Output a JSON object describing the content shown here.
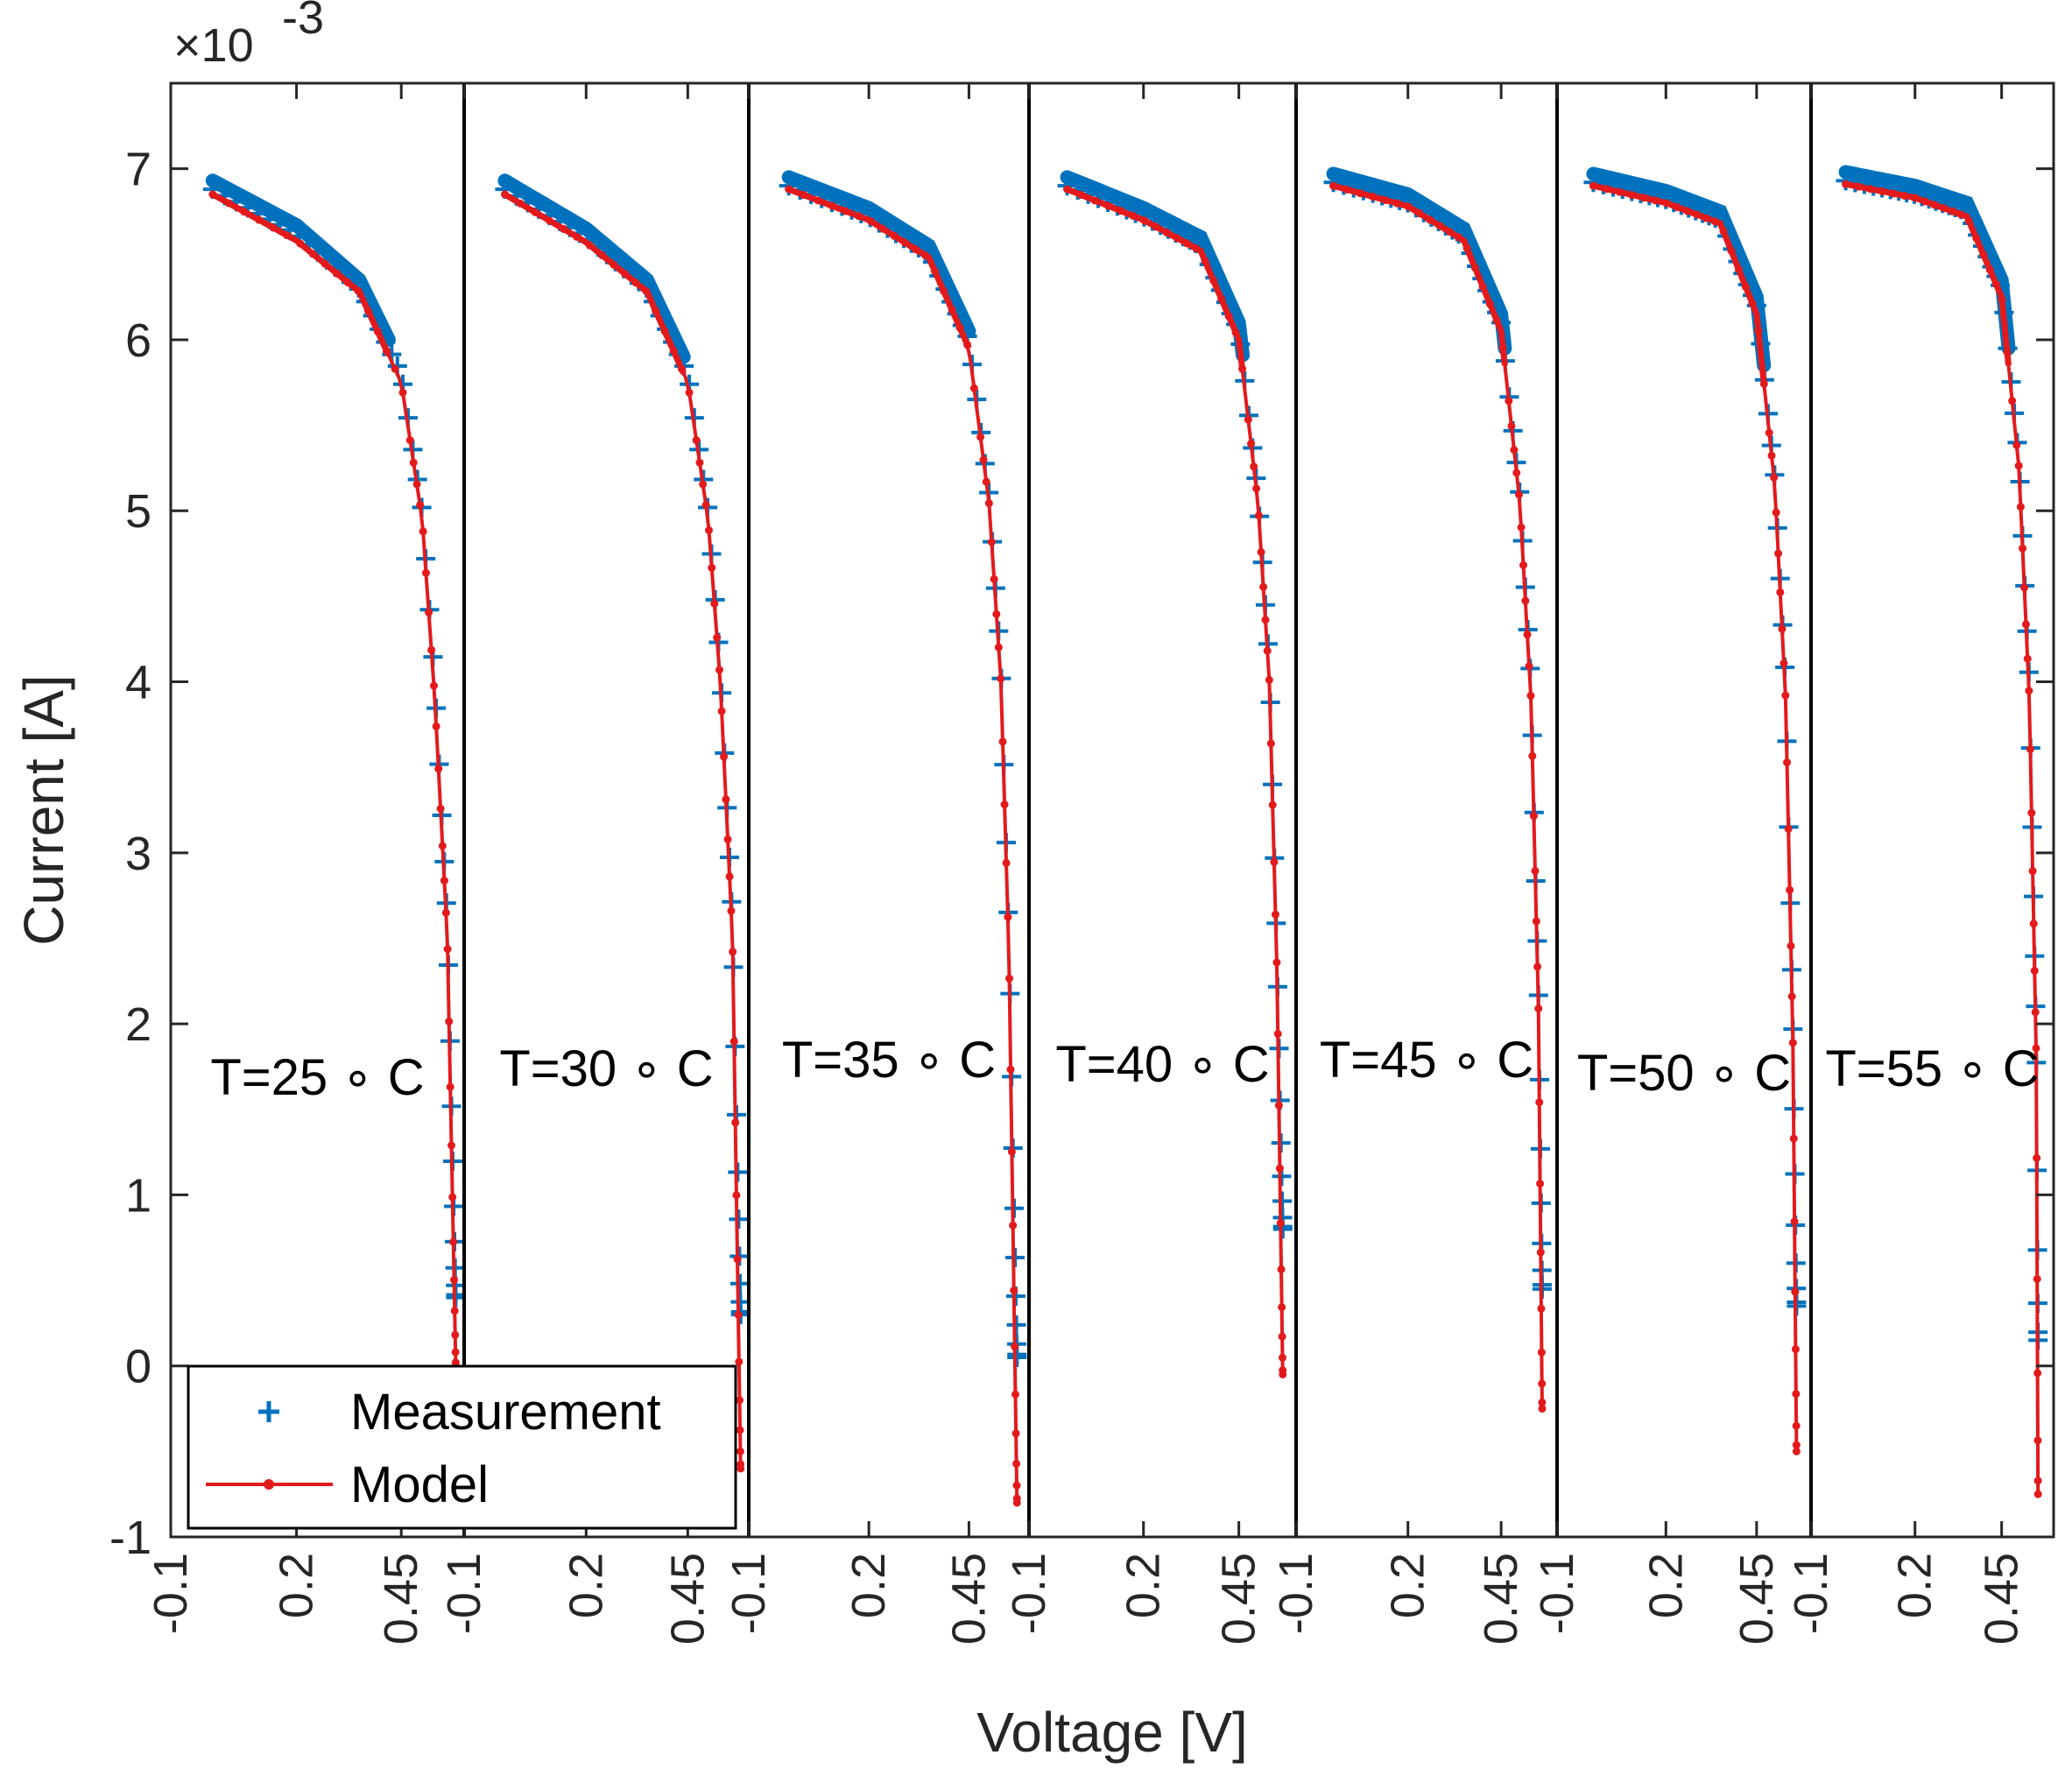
{
  "colors": {
    "measurement": "#0072BD",
    "model": "#E31A1C",
    "axis": "#262626",
    "divider": "#000000",
    "background": "#ffffff"
  },
  "chart_data": {
    "type": "line",
    "title": "",
    "xlabel": "Voltage [V]",
    "ylabel": "Current [A]",
    "y_exponent_label": "×10",
    "y_exponent_power": "-3",
    "ylim": [
      -1,
      7.5
    ],
    "y_ticks": [
      -1,
      0,
      1,
      2,
      3,
      4,
      5,
      6,
      7
    ],
    "y_tick_labels": [
      "-1",
      "0",
      "1",
      "2",
      "3",
      "4",
      "5",
      "6",
      "7"
    ],
    "panel_xlim": [
      -0.1,
      0.6
    ],
    "x_tick_values": [
      -0.1,
      0.2,
      0.45
    ],
    "x_tick_labels": [
      "-0.1",
      "0.2",
      "0.45"
    ],
    "grid": false,
    "legend": {
      "position": "bottom-left",
      "entries": [
        {
          "label": "Measurement",
          "marker": "plus"
        },
        {
          "label": "Model",
          "marker": "line-dot"
        }
      ]
    },
    "panels": [
      {
        "label": "T=25 ∘ C",
        "temperature_c": 25,
        "voc": 0.58,
        "isc": 6.88,
        "knee": 0.43
      },
      {
        "label": "T=30 ∘ C",
        "temperature_c": 30,
        "voc": 0.58,
        "isc": 6.88,
        "knee": 0.45
      },
      {
        "label": "T=35 ∘ C",
        "temperature_c": 35,
        "voc": 0.57,
        "isc": 6.9,
        "knee": 0.46
      },
      {
        "label": "T=40 ∘ C",
        "temperature_c": 40,
        "voc": 0.57,
        "isc": 6.9,
        "knee": 0.47
      },
      {
        "label": "T=45 ∘ C",
        "temperature_c": 45,
        "voc": 0.565,
        "isc": 6.92,
        "knee": 0.47
      },
      {
        "label": "T=50 ∘ C",
        "temperature_c": 50,
        "voc": 0.56,
        "isc": 6.92,
        "knee": 0.48
      },
      {
        "label": "T=55 ∘ C",
        "temperature_c": 55,
        "voc": 0.555,
        "isc": 6.93,
        "knee": 0.48
      }
    ],
    "series": [
      {
        "name": "Measurement",
        "note": "approximate I-V points per panel (V, I×1e-3 A)",
        "values": [
          [
            [
              0.0,
              6.88
            ],
            [
              0.2,
              6.62
            ],
            [
              0.35,
              6.3
            ],
            [
              0.45,
              5.8
            ],
            [
              0.5,
              5.0
            ],
            [
              0.53,
              4.0
            ],
            [
              0.56,
              2.6
            ],
            [
              0.58,
              0.4
            ]
          ],
          [
            [
              0.0,
              6.88
            ],
            [
              0.2,
              6.6
            ],
            [
              0.35,
              6.3
            ],
            [
              0.45,
              5.8
            ],
            [
              0.5,
              5.0
            ],
            [
              0.53,
              4.1
            ],
            [
              0.56,
              2.6
            ],
            [
              0.58,
              0.3
            ]
          ],
          [
            [
              0.0,
              6.9
            ],
            [
              0.2,
              6.72
            ],
            [
              0.35,
              6.5
            ],
            [
              0.45,
              6.0
            ],
            [
              0.5,
              5.1
            ],
            [
              0.53,
              4.1
            ],
            [
              0.55,
              2.5
            ],
            [
              0.57,
              0.05
            ]
          ],
          [
            [
              0.0,
              6.9
            ],
            [
              0.2,
              6.72
            ],
            [
              0.35,
              6.55
            ],
            [
              0.45,
              6.05
            ],
            [
              0.5,
              5.1
            ],
            [
              0.53,
              4.1
            ],
            [
              0.55,
              2.4
            ],
            [
              0.565,
              0.8
            ]
          ],
          [
            [
              0.0,
              6.92
            ],
            [
              0.2,
              6.8
            ],
            [
              0.35,
              6.6
            ],
            [
              0.45,
              6.1
            ],
            [
              0.5,
              5.1
            ],
            [
              0.53,
              4.0
            ],
            [
              0.55,
              2.2
            ],
            [
              0.56,
              0.45
            ]
          ],
          [
            [
              0.0,
              6.92
            ],
            [
              0.2,
              6.82
            ],
            [
              0.35,
              6.7
            ],
            [
              0.45,
              6.2
            ],
            [
              0.5,
              5.2
            ],
            [
              0.53,
              4.0
            ],
            [
              0.55,
              2.0
            ],
            [
              0.56,
              0.35
            ]
          ],
          [
            [
              0.0,
              6.93
            ],
            [
              0.2,
              6.85
            ],
            [
              0.35,
              6.75
            ],
            [
              0.45,
              6.3
            ],
            [
              0.5,
              5.3
            ],
            [
              0.53,
              4.0
            ],
            [
              0.55,
              1.9
            ],
            [
              0.555,
              0.15
            ]
          ]
        ]
      },
      {
        "name": "Model",
        "note": "approximate fitted I-V curve per panel",
        "values": [
          [
            [
              0.0,
              6.85
            ],
            [
              0.2,
              6.58
            ],
            [
              0.35,
              6.28
            ],
            [
              0.45,
              5.75
            ],
            [
              0.5,
              4.95
            ],
            [
              0.53,
              3.9
            ],
            [
              0.56,
              2.5
            ],
            [
              0.58,
              0.0
            ]
          ],
          [
            [
              0.0,
              6.85
            ],
            [
              0.2,
              6.57
            ],
            [
              0.35,
              6.28
            ],
            [
              0.45,
              5.75
            ],
            [
              0.5,
              4.95
            ],
            [
              0.53,
              4.0
            ],
            [
              0.56,
              2.5
            ],
            [
              0.58,
              -0.6
            ]
          ],
          [
            [
              0.0,
              6.88
            ],
            [
              0.2,
              6.7
            ],
            [
              0.35,
              6.48
            ],
            [
              0.45,
              5.95
            ],
            [
              0.5,
              5.05
            ],
            [
              0.53,
              4.0
            ],
            [
              0.55,
              2.4
            ],
            [
              0.57,
              -0.8
            ]
          ],
          [
            [
              0.0,
              6.88
            ],
            [
              0.2,
              6.7
            ],
            [
              0.35,
              6.52
            ],
            [
              0.45,
              6.0
            ],
            [
              0.5,
              5.05
            ],
            [
              0.53,
              4.0
            ],
            [
              0.55,
              2.3
            ],
            [
              0.565,
              -0.05
            ]
          ],
          [
            [
              0.0,
              6.9
            ],
            [
              0.2,
              6.78
            ],
            [
              0.35,
              6.58
            ],
            [
              0.45,
              6.05
            ],
            [
              0.5,
              5.05
            ],
            [
              0.53,
              3.9
            ],
            [
              0.55,
              2.1
            ],
            [
              0.56,
              -0.25
            ]
          ],
          [
            [
              0.0,
              6.9
            ],
            [
              0.2,
              6.8
            ],
            [
              0.35,
              6.68
            ],
            [
              0.45,
              6.15
            ],
            [
              0.5,
              5.15
            ],
            [
              0.53,
              3.9
            ],
            [
              0.55,
              1.9
            ],
            [
              0.56,
              -0.5
            ]
          ],
          [
            [
              0.0,
              6.91
            ],
            [
              0.2,
              6.83
            ],
            [
              0.35,
              6.72
            ],
            [
              0.45,
              6.25
            ],
            [
              0.5,
              5.25
            ],
            [
              0.53,
              3.9
            ],
            [
              0.55,
              1.8
            ],
            [
              0.555,
              -0.75
            ]
          ]
        ]
      }
    ]
  }
}
